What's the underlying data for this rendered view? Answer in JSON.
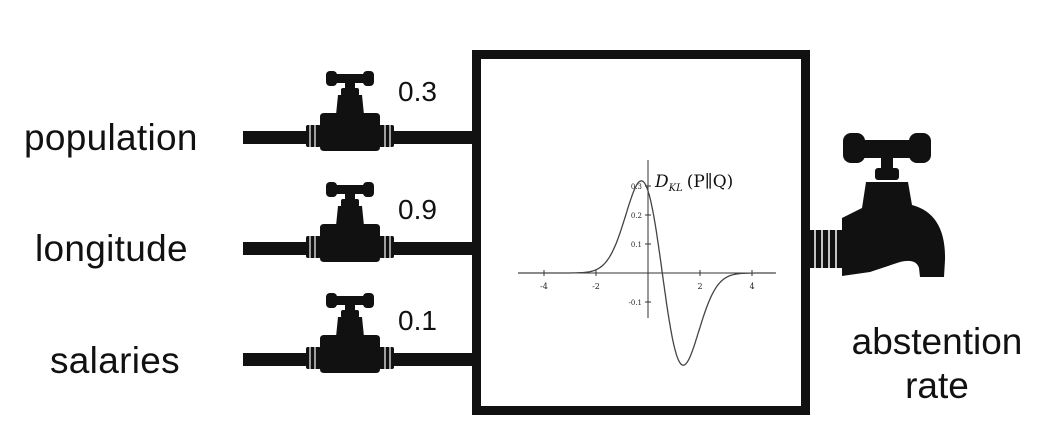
{
  "inputs": [
    {
      "label": "population",
      "valve": "0.3"
    },
    {
      "label": "longitude",
      "valve": "0.9"
    },
    {
      "label": "salaries",
      "valve": "0.1"
    }
  ],
  "output": {
    "line1": "abstention",
    "line2": "rate"
  },
  "plot": {
    "formula": "D",
    "formula_sub": "KL",
    "formula_args": "(P∥Q)",
    "x_ticks": [
      "-4",
      "-2",
      "2",
      "4"
    ],
    "y_ticks": [
      "0.3",
      "0.2",
      "0.1",
      "-0.1"
    ]
  },
  "colors": {
    "ink": "#111111",
    "background": "#ffffff"
  },
  "icons": {
    "input_valve": "faucet-valve-icon",
    "output_tap": "water-tap-icon"
  }
}
